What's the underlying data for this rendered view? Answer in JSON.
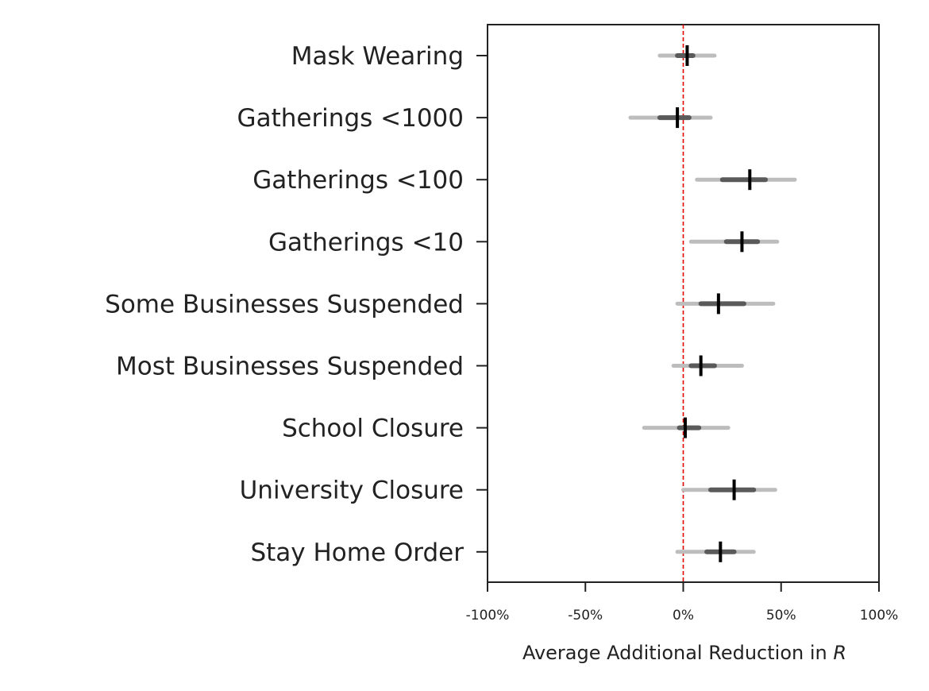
{
  "chart_data": {
    "type": "forest",
    "xlabel": "Average Additional Reduction in",
    "xlabel_variable": "R",
    "xlim": [
      -100,
      100
    ],
    "xticks": [
      -100,
      -50,
      0,
      50,
      100
    ],
    "xtick_labels": [
      "-100%",
      "-50%",
      "0%",
      "50%",
      "100%"
    ],
    "reference_line": {
      "x": 0,
      "color": "#e00000",
      "style": "dashed"
    },
    "grid": false,
    "categories": [
      "Mask Wearing",
      "Gatherings <1000",
      "Gatherings <100",
      "Gatherings <10",
      "Some Businesses Suspended",
      "Most Businesses Suspended",
      "School Closure",
      "University Closure",
      "Stay Home Order"
    ],
    "median": [
      2,
      -3,
      34,
      30,
      18,
      9,
      1,
      26,
      19
    ],
    "ci50_low": [
      -3,
      -12,
      20,
      22,
      9,
      4,
      -2,
      14,
      12
    ],
    "ci50_high": [
      5,
      3,
      42,
      38,
      31,
      16,
      8,
      36,
      26
    ],
    "ci95_low": [
      -12,
      -27,
      7,
      4,
      -3,
      -5,
      -20,
      0,
      -3
    ],
    "ci95_high": [
      16,
      14,
      57,
      48,
      46,
      30,
      23,
      47,
      36
    ],
    "colors": {
      "ci95": "#bdbdbd",
      "ci50": "#5a5a5a",
      "median": "#000000",
      "axis": "#222222"
    }
  }
}
